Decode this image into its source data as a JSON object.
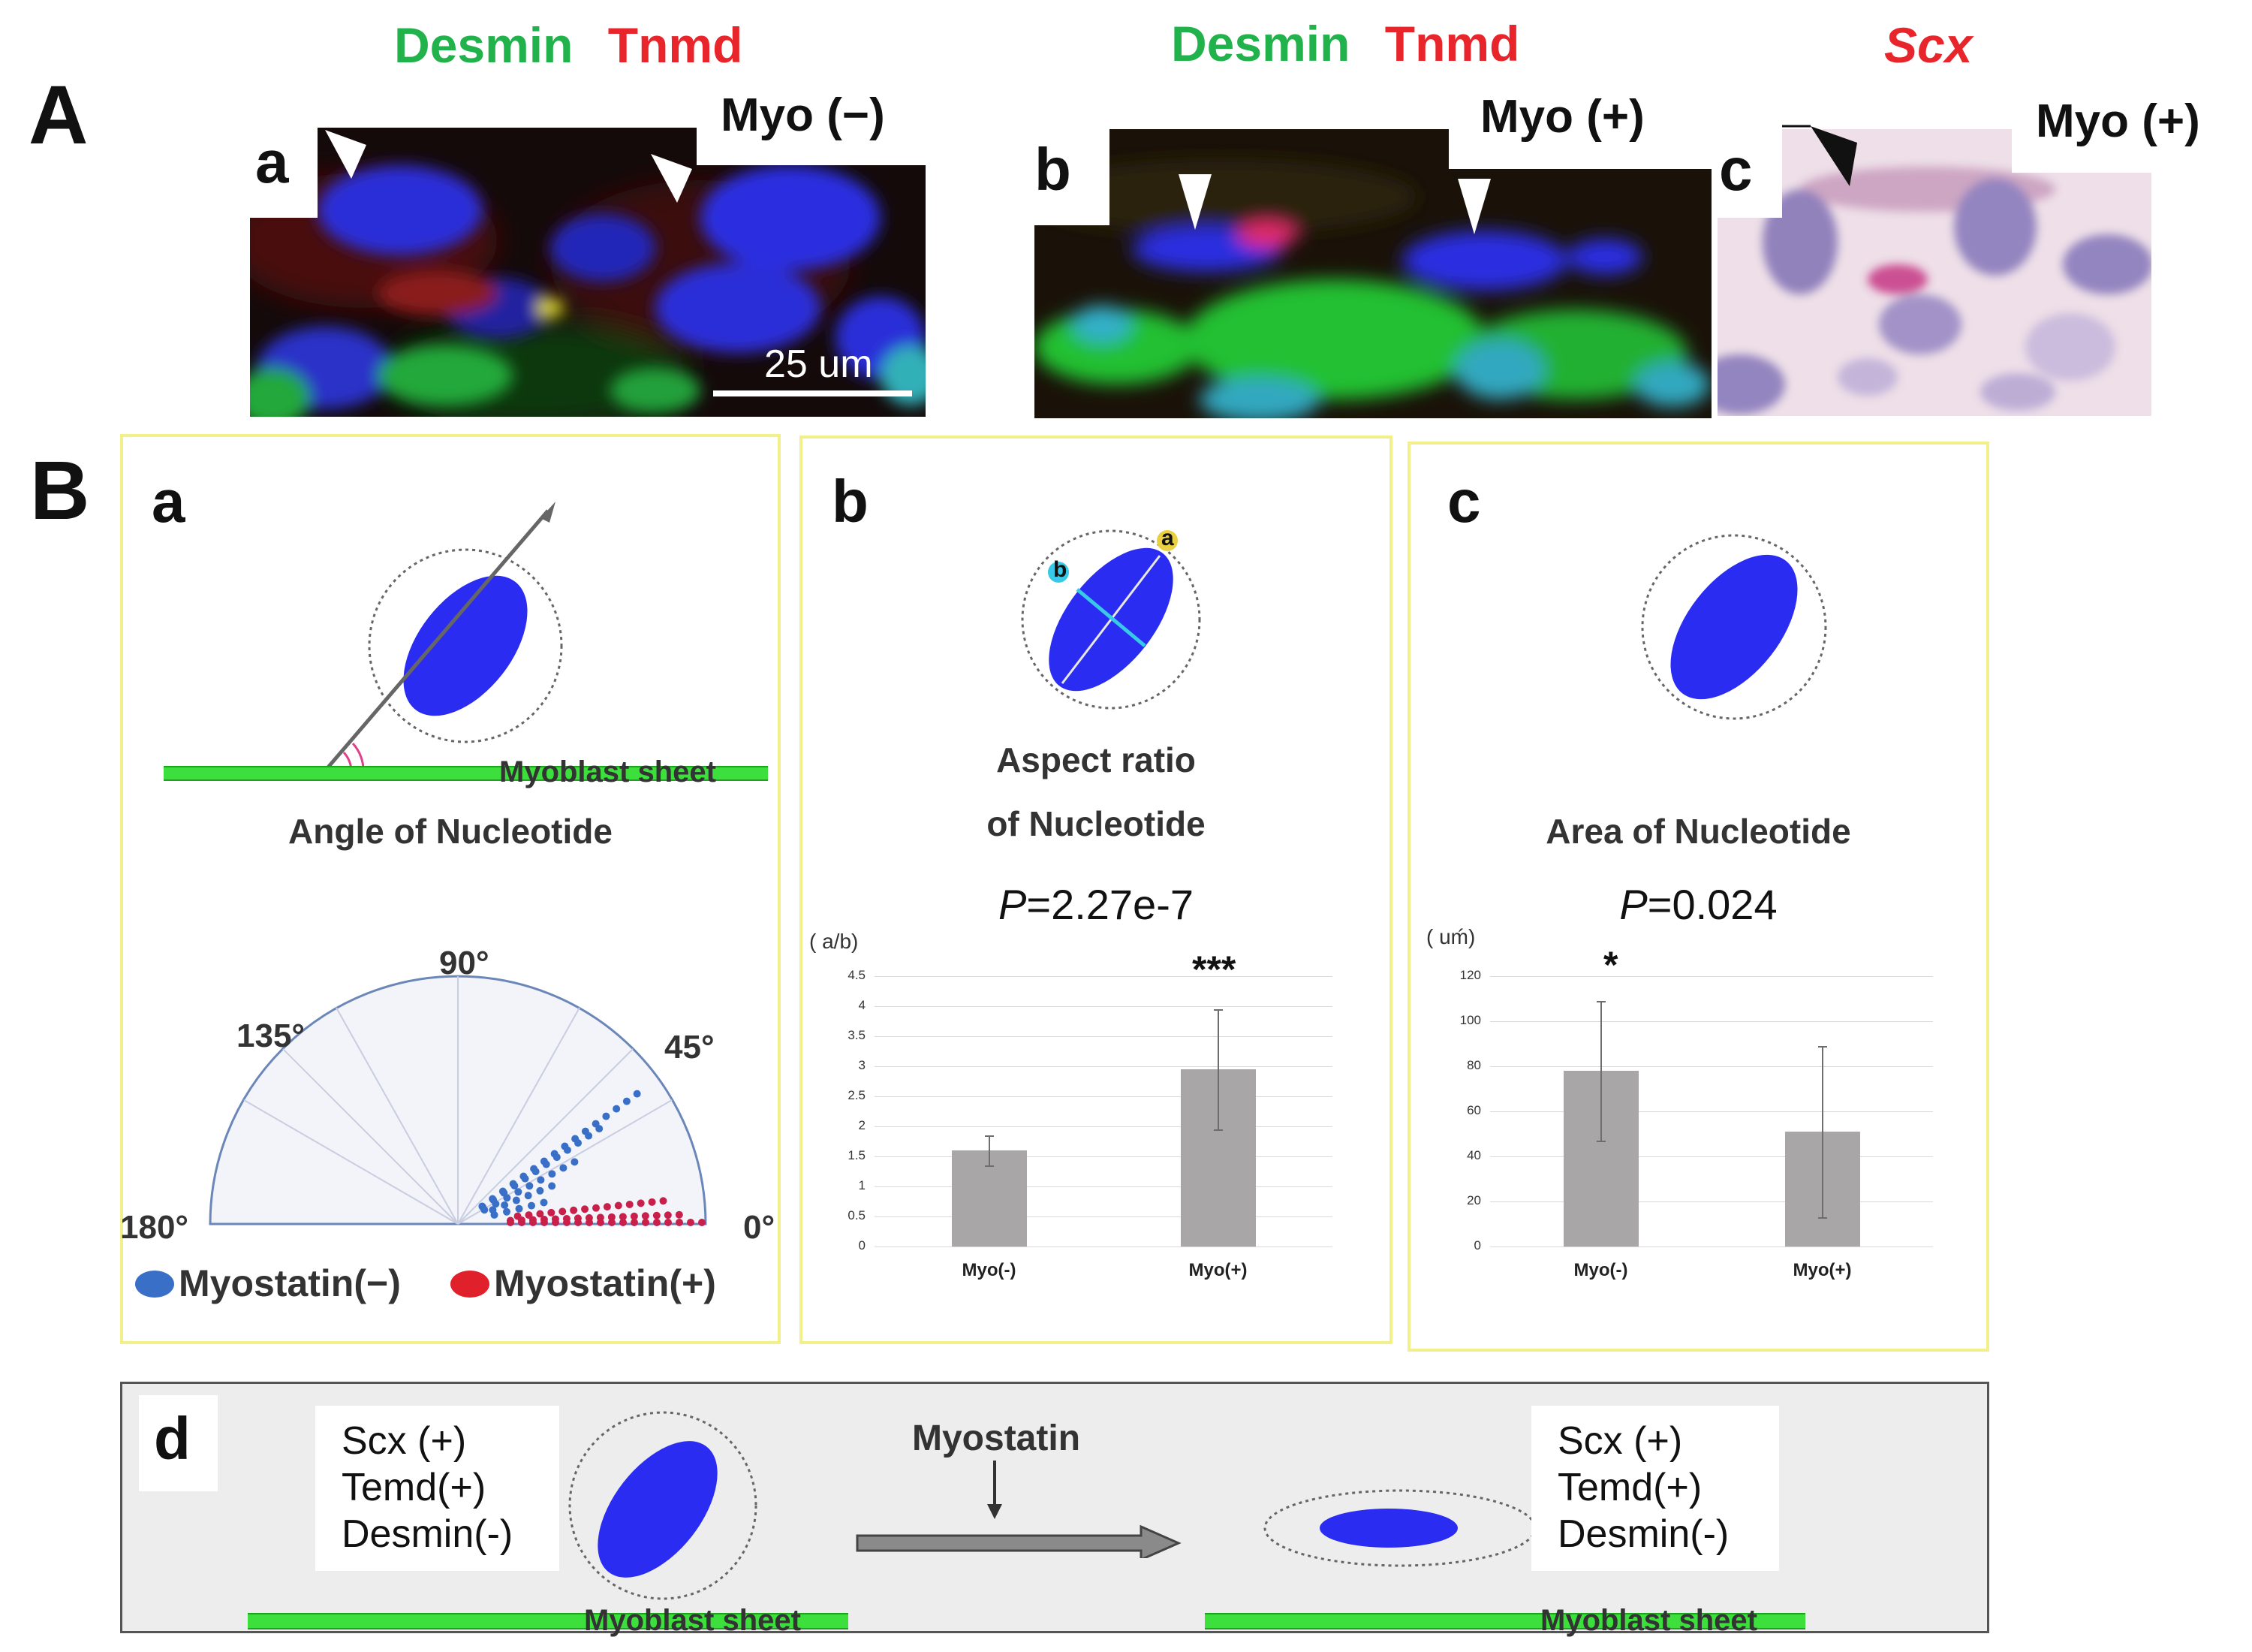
{
  "panelA": {
    "letter": "A",
    "a": {
      "letter": "a",
      "stain1": "Desmin",
      "stain2": "Tnmd",
      "myo_label": "Myo (−)",
      "scale": "25 um"
    },
    "b": {
      "letter": "b",
      "stain1": "Desmin",
      "stain2": "Tnmd",
      "myo_label": "Myo (+)"
    },
    "c": {
      "letter": "c",
      "stain": "Scx",
      "myo_label": "Myo (+)"
    }
  },
  "panelB": {
    "letter": "B",
    "a": {
      "letter": "a",
      "sheet_label": "Myoblast sheet",
      "title": "Angle of Nucleotide",
      "angles": {
        "a90": "90°",
        "a135": "135°",
        "a45": "45°",
        "a180": "180°",
        "a0": "0°"
      },
      "legend": {
        "neg": "Myostatin(−)",
        "pos": "Myostatin(+)"
      }
    },
    "b": {
      "letter": "b",
      "axis_a": "a",
      "axis_b": "b",
      "title1": "Aspect ratio",
      "title2": "of Nucleotide",
      "p_label": "P",
      "p_value": "=2.27e-7",
      "significance": "***",
      "unit": "( a/b)"
    },
    "c": {
      "letter": "c",
      "title": "Area of Nucleotide",
      "p_label": "P",
      "p_value": "=0.024",
      "significance": "*",
      "unit": "( uḿ)"
    },
    "d": {
      "letter": "d",
      "left_lines": [
        "Scx (+)",
        "Temd(+)",
        "Desmin(-)"
      ],
      "right_lines": [
        "Scx (+)",
        "Temd(+)",
        "Desmin(-)"
      ],
      "arrow_label": "Myostatin",
      "sheet_label_left": "Myoblast sheet",
      "sheet_label_right": "Myoblast sheet"
    }
  },
  "chart_data": [
    {
      "type": "bar",
      "title": "Aspect ratio of Nucleotide",
      "ylabel": "( a/b)",
      "categories": [
        "Myo(-)",
        "Myo(+)"
      ],
      "values": [
        1.6,
        2.95
      ],
      "errors": [
        0.25,
        1.0
      ],
      "ylim": [
        0,
        4.5
      ],
      "yticks": [
        "0",
        "0.5",
        "1",
        "1.5",
        "2",
        "2.5",
        "3",
        "3.5",
        "4",
        "4.5"
      ],
      "grid": true
    },
    {
      "type": "bar",
      "title": "Area of Nucleotide",
      "ylabel": "( uḿ)",
      "categories": [
        "Myo(-)",
        "Myo(+)"
      ],
      "values": [
        78,
        51
      ],
      "errors": [
        31,
        38
      ],
      "ylim": [
        0,
        120
      ],
      "yticks": [
        "0",
        "20",
        "40",
        "60",
        "80",
        "100",
        "120"
      ],
      "grid": true
    },
    {
      "type": "scatter",
      "title": "Angle of Nucleotide",
      "angular_range": [
        0,
        180
      ],
      "series": [
        {
          "name": "Myostatin(−)",
          "color": "#3a6fc8",
          "angles_deg": [
            36,
            34,
            28,
            22,
            14
          ]
        },
        {
          "name": "Myostatin(+)",
          "color": "#c8204a",
          "angles_deg": [
            6,
            2,
            0
          ]
        }
      ]
    }
  ],
  "colors": {
    "desmin": "#22b24c",
    "tnmd": "#e8252a",
    "scx": "#e8252a",
    "yellow_border": "#f3ef8a",
    "nucleus": "#2a2cf2"
  }
}
